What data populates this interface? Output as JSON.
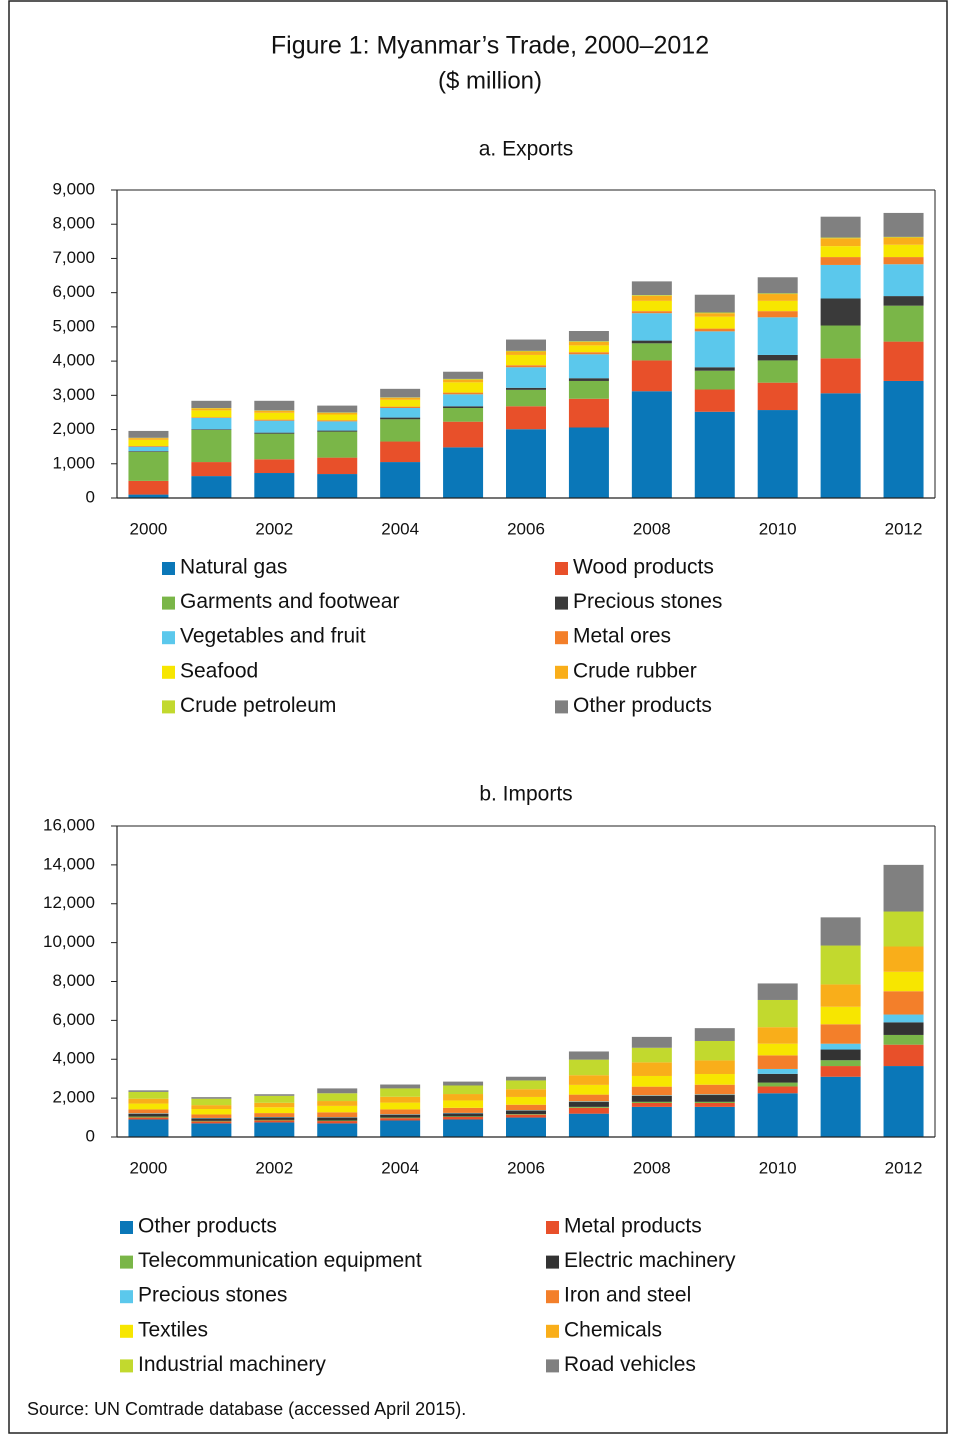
{
  "title": "Figure 1: Myanmar’s Trade, 2000–2012",
  "subtitle": "($ million)",
  "source": "Source: UN Comtrade database (accessed April 2015).",
  "chart_data": [
    {
      "type": "bar",
      "stacked": true,
      "title": "a. Exports",
      "categories": [
        "2000",
        null,
        "2002",
        null,
        "2004",
        null,
        "2006",
        null,
        "2008",
        null,
        "2010",
        null,
        "2012"
      ],
      "ylim": [
        0,
        9000
      ],
      "yticks": [
        0,
        {
          "value": 1000,
          "label": "1,000"
        },
        {
          "value": 2000,
          "label": "2,000"
        },
        {
          "value": 3000,
          "label": "3,000"
        },
        {
          "value": 4000,
          "label": "4,000"
        },
        {
          "value": 5000,
          "label": "5,000"
        },
        {
          "value": 6000,
          "label": "6,000"
        },
        {
          "value": 7000,
          "label": "7,000"
        },
        {
          "value": 8000,
          "label": "8,000"
        },
        {
          "value": 9000,
          "label": "9,000"
        }
      ],
      "series": [
        {
          "name": "Natural gas",
          "color": "#0a77b8",
          "values": [
            100,
            640,
            730,
            700,
            1050,
            1480,
            2010,
            2060,
            3120,
            2520,
            2570,
            3060,
            3420
          ]
        },
        {
          "name": "Wood products",
          "color": "#e8502a",
          "values": [
            400,
            410,
            400,
            480,
            600,
            750,
            670,
            840,
            900,
            650,
            800,
            1020,
            1150
          ]
        },
        {
          "name": "Garments and footwear",
          "color": "#7ab648",
          "values": [
            850,
            940,
            750,
            760,
            650,
            400,
            480,
            520,
            500,
            550,
            650,
            960,
            1050
          ]
        },
        {
          "name": "Precious stones",
          "color": "#3a3a3a",
          "values": [
            20,
            20,
            30,
            30,
            50,
            50,
            60,
            80,
            80,
            100,
            160,
            790,
            280
          ]
        },
        {
          "name": "Vegetables and fruit",
          "color": "#5bc8ec",
          "values": [
            130,
            330,
            350,
            270,
            280,
            350,
            600,
            700,
            800,
            1050,
            1100,
            980,
            930
          ]
        },
        {
          "name": "Metal ores",
          "color": "#f37f2a",
          "values": [
            20,
            20,
            30,
            30,
            40,
            50,
            60,
            60,
            60,
            80,
            180,
            230,
            210
          ]
        },
        {
          "name": "Seafood",
          "color": "#f7e600",
          "values": [
            180,
            200,
            200,
            170,
            200,
            300,
            300,
            200,
            300,
            350,
            300,
            320,
            360
          ]
        },
        {
          "name": "Crude rubber",
          "color": "#f9ae1a",
          "values": [
            50,
            60,
            60,
            50,
            60,
            80,
            100,
            100,
            150,
            100,
            200,
            230,
            210
          ]
        },
        {
          "name": "Crude petroleum",
          "color": "#c2d92e",
          "values": [
            10,
            10,
            10,
            10,
            10,
            20,
            20,
            20,
            20,
            20,
            20,
            20,
            20
          ]
        },
        {
          "name": "Other products",
          "color": "#808080",
          "values": [
            200,
            210,
            280,
            200,
            250,
            210,
            330,
            300,
            400,
            520,
            470,
            610,
            700
          ]
        }
      ]
    },
    {
      "type": "bar",
      "stacked": true,
      "title": "b. Imports",
      "categories": [
        "2000",
        null,
        "2002",
        null,
        "2004",
        null,
        "2006",
        null,
        "2008",
        null,
        "2010",
        null,
        "2012"
      ],
      "ylim": [
        0,
        16000
      ],
      "yticks": [
        0,
        {
          "value": 2000,
          "label": "2,000"
        },
        {
          "value": 4000,
          "label": "4,000"
        },
        {
          "value": 6000,
          "label": "6,000"
        },
        {
          "value": 8000,
          "label": "8,000"
        },
        {
          "value": 10000,
          "label": "10,000"
        },
        {
          "value": 12000,
          "label": "12,000"
        },
        {
          "value": 14000,
          "label": "14,000"
        },
        {
          "value": 16000,
          "label": "16,000"
        }
      ],
      "series": [
        {
          "name": "Other products",
          "color": "#0a77b8",
          "values": [
            900,
            700,
            750,
            700,
            850,
            900,
            1000,
            1200,
            1550,
            1550,
            2250,
            3100,
            3650
          ]
        },
        {
          "name": "Metal products",
          "color": "#e8502a",
          "values": [
            100,
            100,
            100,
            120,
            120,
            130,
            150,
            300,
            200,
            200,
            350,
            550,
            1100
          ]
        },
        {
          "name": "Telecommunication equipment",
          "color": "#7ab648",
          "values": [
            50,
            30,
            30,
            30,
            30,
            30,
            30,
            50,
            60,
            60,
            200,
            300,
            500
          ]
        },
        {
          "name": "Electric machinery",
          "color": "#333333",
          "values": [
            150,
            130,
            130,
            150,
            150,
            160,
            180,
            250,
            300,
            350,
            450,
            550,
            650
          ]
        },
        {
          "name": "Precious stones",
          "color": "#5bc8ec",
          "values": [
            20,
            20,
            20,
            20,
            20,
            20,
            20,
            30,
            30,
            30,
            250,
            300,
            400
          ]
        },
        {
          "name": "Iron and steel",
          "color": "#f37f2a",
          "values": [
            200,
            180,
            200,
            250,
            250,
            260,
            280,
            350,
            450,
            500,
            700,
            1000,
            1200
          ]
        },
        {
          "name": "Textiles",
          "color": "#f7e600",
          "values": [
            300,
            280,
            300,
            330,
            350,
            380,
            400,
            500,
            550,
            550,
            600,
            900,
            1000
          ]
        },
        {
          "name": "Chemicals",
          "color": "#f9ae1a",
          "values": [
            250,
            200,
            230,
            250,
            300,
            330,
            400,
            500,
            700,
            700,
            850,
            1150,
            1300
          ]
        },
        {
          "name": "Industrial machinery",
          "color": "#c2d92e",
          "values": [
            350,
            330,
            360,
            400,
            430,
            440,
            450,
            800,
            750,
            1000,
            1400,
            2000,
            1800
          ]
        },
        {
          "name": "Road vehicles",
          "color": "#808080",
          "values": [
            80,
            80,
            80,
            250,
            200,
            200,
            190,
            420,
            560,
            660,
            850,
            1450,
            2400
          ]
        }
      ]
    }
  ]
}
